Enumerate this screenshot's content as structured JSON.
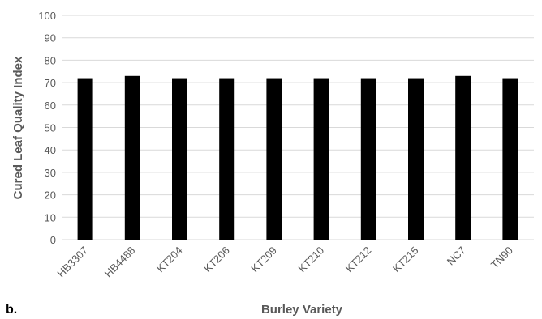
{
  "panel_label": "b.",
  "chart_data": {
    "type": "bar",
    "categories": [
      "HB3307",
      "HB4488",
      "KT204",
      "KT206",
      "KT209",
      "KT210",
      "KT212",
      "KT215",
      "NC7",
      "TN90"
    ],
    "values": [
      72,
      73,
      72,
      72,
      72,
      72,
      72,
      72,
      73,
      72
    ],
    "ylabel": "Cured Leaf Quality Index",
    "xlabel": "Burley Variety",
    "ylim": [
      0,
      100
    ],
    "yticks": [
      "0",
      "10",
      "20",
      "30",
      "40",
      "50",
      "60",
      "70",
      "80",
      "90",
      "100"
    ],
    "grid": true,
    "bar_color": "#000000",
    "grid_color": "#d9d9d9"
  }
}
